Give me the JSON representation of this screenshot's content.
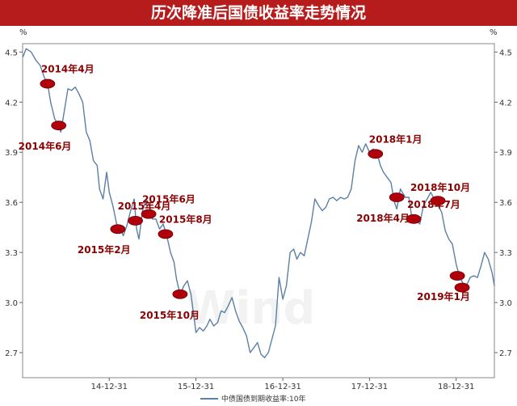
{
  "title": "历次降准后国债收益率走势情况",
  "watermark": "Wind",
  "chart_data": {
    "type": "line",
    "title": "历次降准后国债收益率走势情况",
    "unit": "%",
    "ylim": [
      2.55,
      4.55
    ],
    "yticks": [
      2.7,
      3.0,
      3.3,
      3.6,
      3.9,
      4.2,
      4.5
    ],
    "xlim": [
      "2013-12-31",
      "2019-06-10"
    ],
    "xticks": [
      {
        "date": "2014-12-31",
        "label": "14-12-31"
      },
      {
        "date": "2015-12-31",
        "label": "15-12-31"
      },
      {
        "date": "2016-12-31",
        "label": "16-12-31"
      },
      {
        "date": "2017-12-31",
        "label": "17-12-31"
      },
      {
        "date": "2018-12-31",
        "label": "18-12-31"
      }
    ],
    "grid": false,
    "legend_position": "bottom-center",
    "series": [
      {
        "name": "中债国债到期收益率:10年",
        "color": "#5b7fa6",
        "points": [
          [
            "2014-01-01",
            4.47
          ],
          [
            "2014-01-15",
            4.52
          ],
          [
            "2014-02-05",
            4.5
          ],
          [
            "2014-02-25",
            4.45
          ],
          [
            "2014-03-15",
            4.42
          ],
          [
            "2014-04-01",
            4.35
          ],
          [
            "2014-04-15",
            4.31
          ],
          [
            "2014-04-28",
            4.2
          ],
          [
            "2014-05-15",
            4.1
          ],
          [
            "2014-06-01",
            4.06
          ],
          [
            "2014-06-10",
            4.02
          ],
          [
            "2014-06-25",
            4.15
          ],
          [
            "2014-07-10",
            4.28
          ],
          [
            "2014-07-25",
            4.27
          ],
          [
            "2014-08-10",
            4.29
          ],
          [
            "2014-08-25",
            4.25
          ],
          [
            "2014-09-10",
            4.2
          ],
          [
            "2014-09-25",
            4.02
          ],
          [
            "2014-10-10",
            3.97
          ],
          [
            "2014-10-25",
            3.85
          ],
          [
            "2014-11-10",
            3.82
          ],
          [
            "2014-11-20",
            3.68
          ],
          [
            "2014-12-05",
            3.62
          ],
          [
            "2014-12-20",
            3.78
          ],
          [
            "2014-12-31",
            3.66
          ],
          [
            "2015-01-15",
            3.58
          ],
          [
            "2015-01-31",
            3.47
          ],
          [
            "2015-02-15",
            3.45
          ],
          [
            "2015-02-28",
            3.4
          ],
          [
            "2015-03-15",
            3.46
          ],
          [
            "2015-03-31",
            3.55
          ],
          [
            "2015-04-15",
            3.62
          ],
          [
            "2015-04-25",
            3.44
          ],
          [
            "2015-05-05",
            3.38
          ],
          [
            "2015-05-20",
            3.55
          ],
          [
            "2015-06-05",
            3.62
          ],
          [
            "2015-06-20",
            3.57
          ],
          [
            "2015-06-30",
            3.5
          ],
          [
            "2015-07-15",
            3.5
          ],
          [
            "2015-07-31",
            3.44
          ],
          [
            "2015-08-15",
            3.47
          ],
          [
            "2015-08-30",
            3.4
          ],
          [
            "2015-09-15",
            3.3
          ],
          [
            "2015-09-30",
            3.24
          ],
          [
            "2015-10-10",
            3.14
          ],
          [
            "2015-10-25",
            3.05
          ],
          [
            "2015-11-10",
            3.1
          ],
          [
            "2015-11-25",
            3.13
          ],
          [
            "2015-12-10",
            3.05
          ],
          [
            "2015-12-31",
            2.82
          ],
          [
            "2016-01-15",
            2.85
          ],
          [
            "2016-01-31",
            2.83
          ],
          [
            "2016-02-15",
            2.86
          ],
          [
            "2016-02-28",
            2.9
          ],
          [
            "2016-03-15",
            2.86
          ],
          [
            "2016-03-31",
            2.88
          ],
          [
            "2016-04-15",
            2.95
          ],
          [
            "2016-04-30",
            2.94
          ],
          [
            "2016-05-15",
            2.98
          ],
          [
            "2016-05-31",
            3.03
          ],
          [
            "2016-06-15",
            2.95
          ],
          [
            "2016-06-30",
            2.89
          ],
          [
            "2016-07-15",
            2.85
          ],
          [
            "2016-07-31",
            2.8
          ],
          [
            "2016-08-15",
            2.7
          ],
          [
            "2016-08-31",
            2.73
          ],
          [
            "2016-09-15",
            2.76
          ],
          [
            "2016-09-30",
            2.69
          ],
          [
            "2016-10-15",
            2.67
          ],
          [
            "2016-10-31",
            2.7
          ],
          [
            "2016-11-15",
            2.78
          ],
          [
            "2016-11-30",
            2.86
          ],
          [
            "2016-12-15",
            3.15
          ],
          [
            "2016-12-31",
            3.02
          ],
          [
            "2017-01-15",
            3.1
          ],
          [
            "2017-01-31",
            3.3
          ],
          [
            "2017-02-15",
            3.32
          ],
          [
            "2017-02-28",
            3.26
          ],
          [
            "2017-03-15",
            3.3
          ],
          [
            "2017-03-31",
            3.28
          ],
          [
            "2017-04-15",
            3.38
          ],
          [
            "2017-04-30",
            3.48
          ],
          [
            "2017-05-15",
            3.62
          ],
          [
            "2017-05-31",
            3.58
          ],
          [
            "2017-06-15",
            3.55
          ],
          [
            "2017-06-30",
            3.57
          ],
          [
            "2017-07-15",
            3.62
          ],
          [
            "2017-07-31",
            3.63
          ],
          [
            "2017-08-15",
            3.61
          ],
          [
            "2017-08-31",
            3.63
          ],
          [
            "2017-09-15",
            3.62
          ],
          [
            "2017-09-30",
            3.63
          ],
          [
            "2017-10-15",
            3.68
          ],
          [
            "2017-10-31",
            3.85
          ],
          [
            "2017-11-15",
            3.94
          ],
          [
            "2017-11-30",
            3.9
          ],
          [
            "2017-12-15",
            3.95
          ],
          [
            "2017-12-31",
            3.9
          ],
          [
            "2018-01-15",
            3.92
          ],
          [
            "2018-01-31",
            3.9
          ],
          [
            "2018-02-15",
            3.82
          ],
          [
            "2018-02-28",
            3.78
          ],
          [
            "2018-03-15",
            3.75
          ],
          [
            "2018-03-31",
            3.72
          ],
          [
            "2018-04-15",
            3.6
          ],
          [
            "2018-04-25",
            3.56
          ],
          [
            "2018-05-10",
            3.68
          ],
          [
            "2018-05-31",
            3.63
          ],
          [
            "2018-06-15",
            3.63
          ],
          [
            "2018-06-30",
            3.48
          ],
          [
            "2018-07-10",
            3.5
          ],
          [
            "2018-07-31",
            3.47
          ],
          [
            "2018-08-15",
            3.58
          ],
          [
            "2018-08-31",
            3.62
          ],
          [
            "2018-09-15",
            3.66
          ],
          [
            "2018-09-30",
            3.62
          ],
          [
            "2018-10-10",
            3.6
          ],
          [
            "2018-10-31",
            3.54
          ],
          [
            "2018-11-15",
            3.43
          ],
          [
            "2018-11-30",
            3.38
          ],
          [
            "2018-12-15",
            3.35
          ],
          [
            "2018-12-31",
            3.23
          ],
          [
            "2019-01-15",
            3.15
          ],
          [
            "2019-01-31",
            3.11
          ],
          [
            "2019-02-15",
            3.11
          ],
          [
            "2019-02-28",
            3.15
          ],
          [
            "2019-03-15",
            3.16
          ],
          [
            "2019-03-31",
            3.15
          ],
          [
            "2019-04-15",
            3.22
          ],
          [
            "2019-04-30",
            3.3
          ],
          [
            "2019-05-15",
            3.26
          ],
          [
            "2019-05-31",
            3.18
          ],
          [
            "2019-06-10",
            3.1
          ]
        ]
      }
    ],
    "annotations": [
      {
        "label": "2014年4月",
        "date": "2014-04-15",
        "value": 4.31,
        "label_pos": "above-right"
      },
      {
        "label": "2014年6月",
        "date": "2014-06-01",
        "value": 4.06,
        "label_pos": "below-left"
      },
      {
        "label": "2015年2月",
        "date": "2015-02-05",
        "value": 3.44,
        "label_pos": "below-left"
      },
      {
        "label": "2015年4月",
        "date": "2015-04-20",
        "value": 3.49,
        "label_pos": "above"
      },
      {
        "label": "2015年6月",
        "date": "2015-06-15",
        "value": 3.53,
        "label_pos": "above-right"
      },
      {
        "label": "2015年8月",
        "date": "2015-08-25",
        "value": 3.41,
        "label_pos": "above-right"
      },
      {
        "label": "2015年10月",
        "date": "2015-10-25",
        "value": 3.05,
        "label_pos": "below-left"
      },
      {
        "label": "2018年1月",
        "date": "2018-01-25",
        "value": 3.89,
        "label_pos": "above-right"
      },
      {
        "label": "2018年4月",
        "date": "2018-04-25",
        "value": 3.63,
        "label_pos": "below-left"
      },
      {
        "label": "2018年7月",
        "date": "2018-07-05",
        "value": 3.5,
        "label_pos": "above-right"
      },
      {
        "label": "2018年10月",
        "date": "2018-10-15",
        "value": 3.61,
        "label_pos": "above-left"
      },
      {
        "label": "2019年1月",
        "date": "2019-01-05",
        "value": 3.16,
        "label_pos": "below-left"
      },
      {
        "label": "",
        "date": "2019-01-25",
        "value": 3.09,
        "label_pos": "none"
      }
    ]
  }
}
